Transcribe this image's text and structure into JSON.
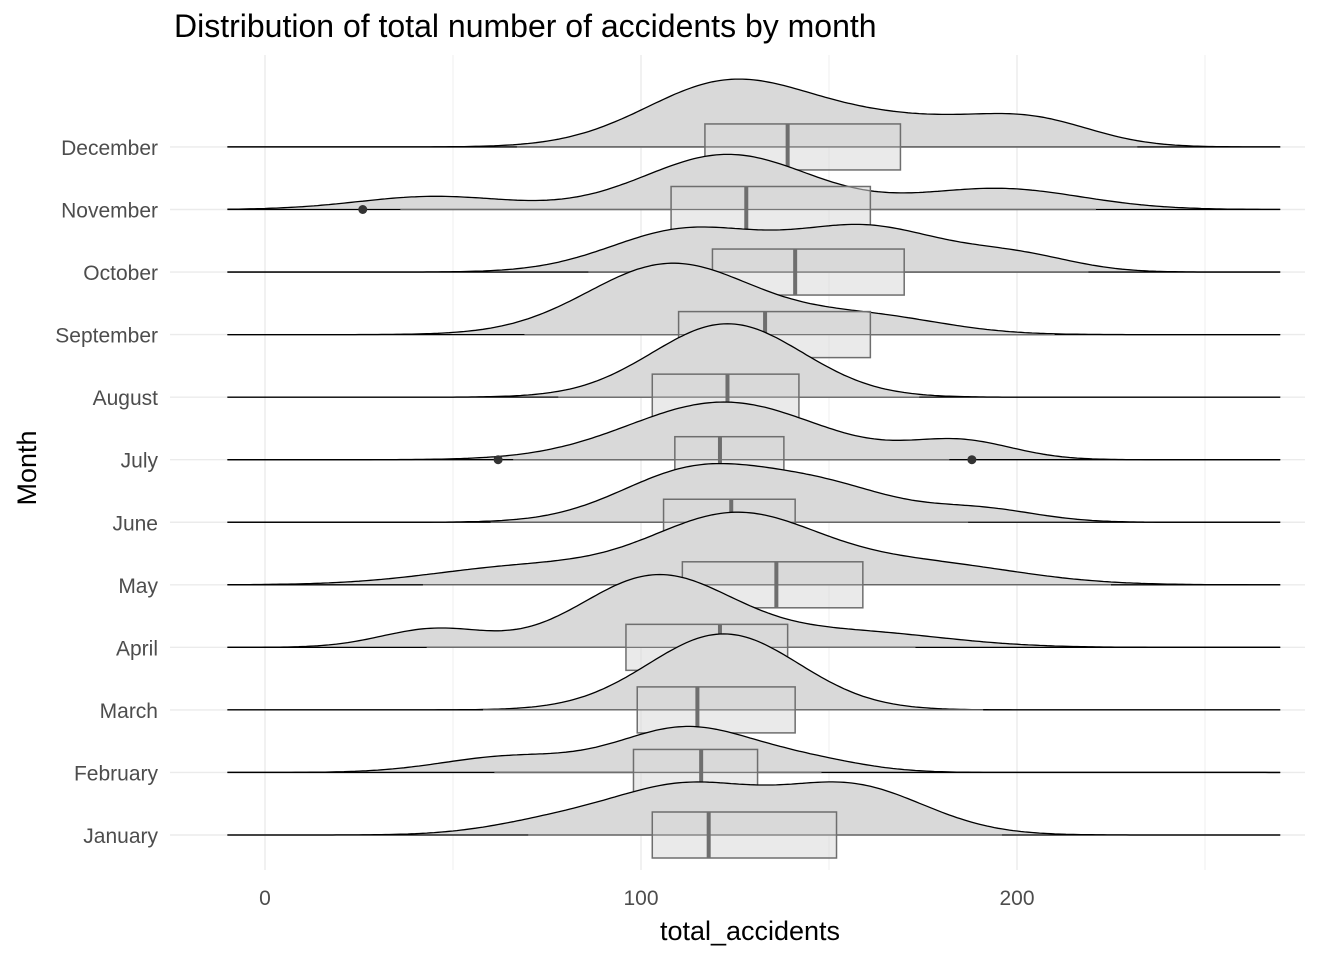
{
  "chart_data": {
    "type": "ridgeline",
    "title": "Distribution of total number of accidents by month",
    "xlabel": "total_accidents",
    "ylabel": "Month",
    "xlim": [
      -25,
      285
    ],
    "xticks": [
      0,
      100,
      200
    ],
    "grid": true,
    "categories": [
      "January",
      "February",
      "March",
      "April",
      "May",
      "June",
      "July",
      "August",
      "September",
      "October",
      "November",
      "December"
    ],
    "boxplots": [
      {
        "month": "January",
        "q1": 103,
        "median": 118,
        "q3": 152,
        "whisker_low": 70,
        "whisker_high": 196,
        "outliers": []
      },
      {
        "month": "February",
        "q1": 98,
        "median": 116,
        "q3": 131,
        "whisker_low": 61,
        "whisker_high": 148,
        "outliers": []
      },
      {
        "month": "March",
        "q1": 99,
        "median": 115,
        "q3": 141,
        "whisker_low": 58,
        "whisker_high": 191,
        "outliers": []
      },
      {
        "month": "April",
        "q1": 96,
        "median": 121,
        "q3": 139,
        "whisker_low": 43,
        "whisker_high": 173,
        "outliers": []
      },
      {
        "month": "May",
        "q1": 111,
        "median": 136,
        "q3": 159,
        "whisker_low": 42,
        "whisker_high": 225,
        "outliers": []
      },
      {
        "month": "June",
        "q1": 106,
        "median": 124,
        "q3": 141,
        "whisker_low": 60,
        "whisker_high": 187,
        "outliers": []
      },
      {
        "month": "July",
        "q1": 109,
        "median": 121,
        "q3": 138,
        "whisker_low": 66,
        "whisker_high": 182,
        "outliers": [
          62,
          188
        ]
      },
      {
        "month": "August",
        "q1": 103,
        "median": 123,
        "q3": 142,
        "whisker_low": 78,
        "whisker_high": 174,
        "outliers": []
      },
      {
        "month": "September",
        "q1": 110,
        "median": 133,
        "q3": 161,
        "whisker_low": 69,
        "whisker_high": 210,
        "outliers": []
      },
      {
        "month": "October",
        "q1": 119,
        "median": 141,
        "q3": 170,
        "whisker_low": 86,
        "whisker_high": 219,
        "outliers": []
      },
      {
        "month": "November",
        "q1": 108,
        "median": 128,
        "q3": 161,
        "whisker_low": 36,
        "whisker_high": 221,
        "outliers": [
          26
        ]
      },
      {
        "month": "December",
        "q1": 117,
        "median": 139,
        "q3": 169,
        "whisker_low": 67,
        "whisker_high": 232,
        "outliers": []
      }
    ],
    "density_range": [
      -10,
      270
    ],
    "densities": [
      {
        "month": "January",
        "peaks": [
          [
            80,
            18,
            0.3
          ],
          [
            112,
            18,
            0.85
          ],
          [
            155,
            20,
            0.95
          ]
        ]
      },
      {
        "month": "February",
        "peaks": [
          [
            65,
            18,
            0.3
          ],
          [
            112,
            18,
            0.85
          ],
          [
            145,
            15,
            0.2
          ]
        ]
      },
      {
        "month": "March",
        "peaks": [
          [
            122,
            20,
            1.45
          ]
        ]
      },
      {
        "month": "April",
        "peaks": [
          [
            45,
            14,
            0.35
          ],
          [
            104,
            20,
            1.35
          ],
          [
            155,
            25,
            0.3
          ]
        ]
      },
      {
        "month": "May",
        "peaks": [
          [
            70,
            25,
            0.35
          ],
          [
            125,
            22,
            1.3
          ],
          [
            175,
            25,
            0.4
          ]
        ]
      },
      {
        "month": "June",
        "peaks": [
          [
            115,
            20,
            1.0
          ],
          [
            150,
            18,
            0.6
          ],
          [
            190,
            15,
            0.25
          ]
        ]
      },
      {
        "month": "July",
        "peaks": [
          [
            122,
            25,
            1.1
          ],
          [
            185,
            14,
            0.35
          ]
        ]
      },
      {
        "month": "August",
        "peaks": [
          [
            123,
            20,
            1.4
          ]
        ]
      },
      {
        "month": "September",
        "peaks": [
          [
            108,
            22,
            1.35
          ],
          [
            160,
            20,
            0.35
          ]
        ]
      },
      {
        "month": "October",
        "peaks": [
          [
            112,
            20,
            0.8
          ],
          [
            160,
            20,
            0.85
          ],
          [
            200,
            15,
            0.3
          ]
        ]
      },
      {
        "month": "November",
        "peaks": [
          [
            45,
            20,
            0.25
          ],
          [
            123,
            22,
            1.05
          ],
          [
            195,
            22,
            0.4
          ]
        ]
      },
      {
        "month": "December",
        "peaks": [
          [
            123,
            22,
            1.2
          ],
          [
            170,
            25,
            0.5
          ],
          [
            205,
            16,
            0.4
          ]
        ]
      }
    ],
    "colors": {
      "fill": "#d9d9d9",
      "line": "#000000",
      "box": "#6e6e6e",
      "grid": "#ebebeb",
      "tick": "#4d4d4d"
    }
  }
}
